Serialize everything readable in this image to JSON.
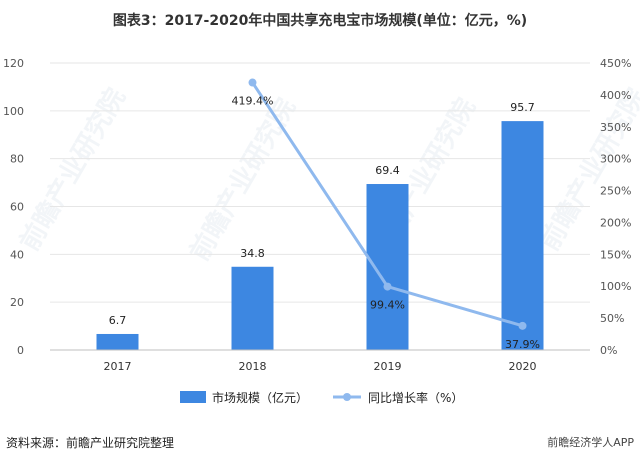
{
  "title": "图表3：2017-2020年中国共享充电宝市场规模(单位：亿元，%)",
  "source": "资料来源：前瞻产业研究院整理",
  "brand": "前瞻经济学人APP",
  "watermark": "前瞻产业研究院",
  "colors": {
    "bar": "#3d87e1",
    "line": "#8fb9ee",
    "grid": "#e6e6e6"
  },
  "chart_data": {
    "type": "bar",
    "categories": [
      "2017",
      "2018",
      "2019",
      "2020"
    ],
    "series": [
      {
        "name": "市场规模（亿元）",
        "type": "bar",
        "axis": "left",
        "values": [
          6.7,
          34.8,
          69.4,
          95.7
        ],
        "labels": [
          "6.7",
          "34.8",
          "69.4",
          "95.7"
        ]
      },
      {
        "name": "同比增长率（%）",
        "type": "line",
        "axis": "right",
        "values": [
          null,
          419.4,
          99.4,
          37.9
        ],
        "labels": [
          "",
          "419.4%",
          "99.4%",
          "37.9%"
        ]
      }
    ],
    "ylim_left": [
      0,
      120
    ],
    "yticks_left": [
      "0",
      "20",
      "40",
      "60",
      "80",
      "100",
      "120"
    ],
    "ylim_right": [
      0,
      450
    ],
    "yticks_right": [
      "0%",
      "50%",
      "100%",
      "150%",
      "200%",
      "250%",
      "300%",
      "350%",
      "400%",
      "450%"
    ],
    "grid": "horizontal",
    "legend": "bottom"
  }
}
